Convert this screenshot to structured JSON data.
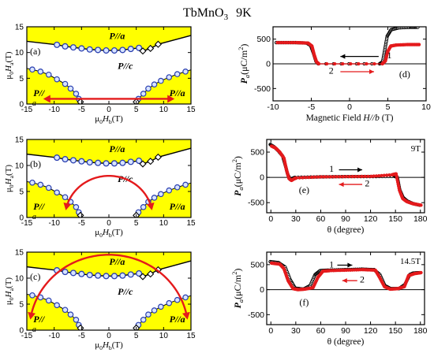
{
  "figure": {
    "title": "TbMnO",
    "title_sub": "3",
    "title_temp": "9K"
  },
  "chart_data": [
    {
      "id": "a",
      "type": "scatter",
      "panel_label": "(a)",
      "xlabel": "μ0Hb(T)",
      "ylabel": "μ0Ha(T)",
      "xlim": [
        -15,
        15
      ],
      "ylim": [
        0,
        15
      ],
      "xticks": [
        "-15",
        "-10",
        "-5",
        "0",
        "5",
        "10",
        "15"
      ],
      "yticks": [
        "0",
        "5",
        "10",
        "15"
      ],
      "region_labels": {
        "top": "P//a",
        "middle": "P//c",
        "left": "P//",
        "right": "P//a"
      },
      "corner_label": "a",
      "colors": {
        "fill": "#ffff00",
        "circle": "#2a3fb0",
        "diamond": "#000000",
        "arrow": "#e41a1c"
      },
      "upper_circles": {
        "x": [
          -9.5,
          -8,
          -6.5,
          -5,
          -3.5,
          -2,
          -0.5,
          1,
          2.5,
          4,
          5.5
        ],
        "y": [
          11.5,
          11.2,
          11.0,
          10.8,
          10.6,
          10.5,
          10.4,
          10.4,
          10.5,
          10.7,
          10.9
        ]
      },
      "upper_diamonds": {
        "x": [
          6.2,
          7.6,
          9.0
        ],
        "y": [
          10.3,
          10.8,
          11.6
        ]
      },
      "boundary_left": {
        "x": [
          -15.5,
          -14,
          -12.5,
          -11,
          -9.5,
          -8,
          -7,
          -6,
          -5.5,
          -5.2
        ],
        "y": [
          7.0,
          6.7,
          6.3,
          5.7,
          4.8,
          3.9,
          3.0,
          2.0,
          1.0,
          0.0
        ]
      },
      "boundary_right": {
        "x": [
          4.8,
          5.4,
          6.3,
          7.2,
          8.3,
          9.5,
          11,
          12.5,
          14,
          15.5
        ],
        "y": [
          0.0,
          1.0,
          2.0,
          3.0,
          3.8,
          4.5,
          5.2,
          5.8,
          6.3,
          6.8
        ]
      },
      "bottom_diamonds": {
        "x": [
          -5.2,
          5.0
        ],
        "y": [
          0.4,
          0.4
        ]
      },
      "arrow": {
        "type": "double",
        "x": [
          -12,
          12
        ],
        "y": 1.0
      }
    },
    {
      "id": "b",
      "type": "scatter",
      "panel_label": "(b)",
      "xlabel": "μ0Hb(T)",
      "ylabel": "μ0Ha(T)",
      "xlim": [
        -15,
        15
      ],
      "ylim": [
        0,
        15
      ],
      "xticks": [
        "-15",
        "-10",
        "-5",
        "0",
        "5",
        "10",
        "15"
      ],
      "yticks": [
        "0",
        "5",
        "10",
        "15"
      ],
      "region_labels": {
        "top": "P//a",
        "middle": "P//c",
        "left": "P//",
        "right": "P//a"
      },
      "corner_label": "a",
      "colors": {
        "fill": "#ffff00",
        "circle": "#2a3fb0",
        "diamond": "#000000",
        "arrow": "#e41a1c"
      },
      "upper_circles": {
        "x": [
          -9.5,
          -8,
          -6.5,
          -5,
          -3.5,
          -2,
          -0.5,
          1,
          2.5,
          4,
          5.5
        ],
        "y": [
          11.5,
          11.2,
          11.0,
          10.8,
          10.6,
          10.5,
          10.4,
          10.4,
          10.5,
          10.7,
          10.9
        ]
      },
      "upper_diamonds": {
        "x": [
          6.2,
          7.6,
          9.0
        ],
        "y": [
          10.3,
          10.8,
          11.6
        ]
      },
      "boundary_left": {
        "x": [
          -15.5,
          -14,
          -12.5,
          -11,
          -9.5,
          -8,
          -7,
          -6,
          -5.5,
          -5.2
        ],
        "y": [
          7.0,
          6.7,
          6.3,
          5.7,
          4.8,
          3.9,
          3.0,
          2.0,
          1.0,
          0.0
        ]
      },
      "boundary_right": {
        "x": [
          4.8,
          5.4,
          6.3,
          7.2,
          8.3,
          9.5,
          11,
          12.5,
          14,
          15.5
        ],
        "y": [
          0.0,
          1.0,
          2.0,
          3.0,
          3.8,
          4.5,
          5.2,
          5.8,
          6.3,
          6.8
        ]
      },
      "bottom_diamonds": {
        "x": [
          -5.2,
          5.0
        ],
        "y": [
          0.4,
          0.4
        ]
      },
      "arrow": {
        "type": "arc",
        "radius": 8.0,
        "from_deg": 10,
        "to_deg": 170
      }
    },
    {
      "id": "c",
      "type": "scatter",
      "panel_label": "(c)",
      "xlabel": "μ0Hb(T)",
      "ylabel": "μ0Ha(T)",
      "xlim": [
        -15,
        15
      ],
      "ylim": [
        0,
        15
      ],
      "xticks": [
        "-15",
        "-10",
        "-5",
        "0",
        "5",
        "10",
        "15"
      ],
      "yticks": [
        "0",
        "5",
        "10",
        "15"
      ],
      "region_labels": {
        "top": "P//a",
        "middle": "P//c",
        "left": "P//",
        "right": "P//a"
      },
      "corner_label": "a",
      "colors": {
        "fill": "#ffff00",
        "circle": "#2a3fb0",
        "diamond": "#000000",
        "arrow": "#e41a1c"
      },
      "upper_circles": {
        "x": [
          -9.5,
          -8,
          -6.5,
          -5,
          -3.5,
          -2,
          -0.5,
          1,
          2.5,
          4,
          5.5
        ],
        "y": [
          11.5,
          11.2,
          11.0,
          10.8,
          10.6,
          10.5,
          10.4,
          10.4,
          10.5,
          10.7,
          10.9
        ]
      },
      "upper_diamonds": {
        "x": [
          6.2,
          7.6,
          9.0
        ],
        "y": [
          10.3,
          10.8,
          11.6
        ]
      },
      "boundary_left": {
        "x": [
          -15.5,
          -14,
          -12.5,
          -11,
          -9.5,
          -8,
          -7,
          -6,
          -5.5,
          -5.2
        ],
        "y": [
          7.0,
          6.7,
          6.3,
          5.7,
          4.8,
          3.9,
          3.0,
          2.0,
          1.0,
          0.0
        ]
      },
      "boundary_right": {
        "x": [
          4.8,
          5.4,
          6.3,
          7.2,
          8.3,
          9.5,
          11,
          12.5,
          14,
          15.5
        ],
        "y": [
          0.0,
          1.0,
          2.0,
          3.0,
          3.8,
          4.5,
          5.2,
          5.8,
          6.3,
          6.8
        ]
      },
      "bottom_diamonds": {
        "x": [
          -5.2,
          5.0
        ],
        "y": [
          0.4,
          0.4
        ]
      },
      "arrow": {
        "type": "arc",
        "radius": 14.5,
        "from_deg": 8,
        "to_deg": 172
      }
    },
    {
      "id": "d",
      "type": "line",
      "panel_label": "(d)",
      "xlabel": "Magnetic Field  H//b (T)",
      "ylabel": "Pa(μC/m2)",
      "xlim": [
        -10,
        10
      ],
      "ylim": [
        -750,
        750
      ],
      "xticks": [
        "-10",
        "-5",
        "0",
        "5",
        "10"
      ],
      "yticks": [
        "-500",
        "0",
        "500"
      ],
      "series": [
        {
          "name": "1",
          "color": "#000000",
          "x": [
            -9.5,
            -7,
            -5.5,
            -5,
            -4.6,
            -4.3,
            -4,
            4,
            4.4,
            4.7,
            5,
            5.5,
            6.5,
            8,
            9
          ],
          "y": [
            430,
            430,
            420,
            370,
            200,
            50,
            0,
            0,
            40,
            300,
            560,
            690,
            730,
            740,
            740
          ]
        },
        {
          "name": "2",
          "color": "#e41a1c",
          "x": [
            -9.5,
            -7,
            -5.5,
            -5,
            -4.7,
            -4.4,
            -4.1,
            4.2,
            4.6,
            4.9,
            5.3,
            6,
            7.5,
            9
          ],
          "y": [
            430,
            430,
            420,
            360,
            180,
            40,
            0,
            0,
            60,
            250,
            360,
            380,
            390,
            390
          ]
        }
      ],
      "annotations": [
        {
          "text": "1",
          "arrow": "left"
        },
        {
          "text": "2",
          "arrow": "right"
        }
      ]
    },
    {
      "id": "e",
      "type": "line",
      "panel_label": "(e)",
      "field_label": "9T",
      "xlabel": "θ (degree)",
      "ylabel": "Pa(μC/m2)",
      "xlim": [
        -5,
        185
      ],
      "ylim": [
        -700,
        750
      ],
      "xticks": [
        "0",
        "30",
        "60",
        "90",
        "120",
        "150",
        "180"
      ],
      "yticks": [
        "-500",
        "0",
        "500"
      ],
      "series": [
        {
          "name": "1",
          "color": "#000000",
          "x": [
            0,
            5,
            10,
            15,
            18,
            21,
            24,
            27,
            30,
            60,
            90,
            120,
            150,
            153,
            156,
            160,
            165,
            172,
            180
          ],
          "y": [
            650,
            600,
            520,
            420,
            250,
            60,
            -40,
            -20,
            0,
            10,
            15,
            15,
            20,
            0,
            -250,
            -400,
            -470,
            -520,
            -550
          ]
        },
        {
          "name": "2",
          "color": "#e41a1c",
          "x": [
            0,
            5,
            10,
            15,
            18,
            21,
            24,
            27,
            30,
            60,
            90,
            120,
            145,
            150,
            154,
            158,
            163,
            170,
            180
          ],
          "y": [
            620,
            580,
            500,
            380,
            150,
            -20,
            -60,
            -30,
            -10,
            10,
            15,
            20,
            50,
            70,
            -250,
            -420,
            -480,
            -520,
            -550
          ]
        }
      ],
      "annotations": [
        {
          "text": "1",
          "arrow": "right"
        },
        {
          "text": "2",
          "arrow": "left"
        }
      ]
    },
    {
      "id": "f",
      "type": "line",
      "panel_label": "(f)",
      "field_label": "14.5T",
      "xlabel": "θ (degree)",
      "ylabel": "Pa(μC/m2)",
      "xlim": [
        -5,
        185
      ],
      "ylim": [
        -700,
        750
      ],
      "xticks": [
        "0",
        "30",
        "60",
        "90",
        "120",
        "150",
        "180"
      ],
      "yticks": [
        "-500",
        "0",
        "500"
      ],
      "series": [
        {
          "name": "1",
          "color": "#000000",
          "x": [
            0,
            10,
            18,
            24,
            30,
            40,
            48,
            54,
            60,
            70,
            90,
            110,
            125,
            132,
            138,
            145,
            155,
            162,
            168,
            172,
            180
          ],
          "y": [
            560,
            540,
            450,
            200,
            30,
            10,
            80,
            300,
            380,
            390,
            400,
            410,
            400,
            300,
            80,
            20,
            20,
            100,
            300,
            330,
            340
          ]
        },
        {
          "name": "2",
          "color": "#e41a1c",
          "x": [
            0,
            10,
            15,
            20,
            26,
            32,
            40,
            50,
            56,
            62,
            70,
            90,
            110,
            125,
            130,
            136,
            143,
            152,
            160,
            165,
            172,
            180
          ],
          "y": [
            530,
            510,
            420,
            180,
            20,
            0,
            10,
            40,
            250,
            370,
            380,
            390,
            400,
            390,
            250,
            60,
            10,
            20,
            60,
            280,
            320,
            340
          ]
        }
      ],
      "annotations": [
        {
          "text": "1",
          "arrow": "right"
        },
        {
          "text": "2",
          "arrow": "left"
        }
      ]
    }
  ]
}
